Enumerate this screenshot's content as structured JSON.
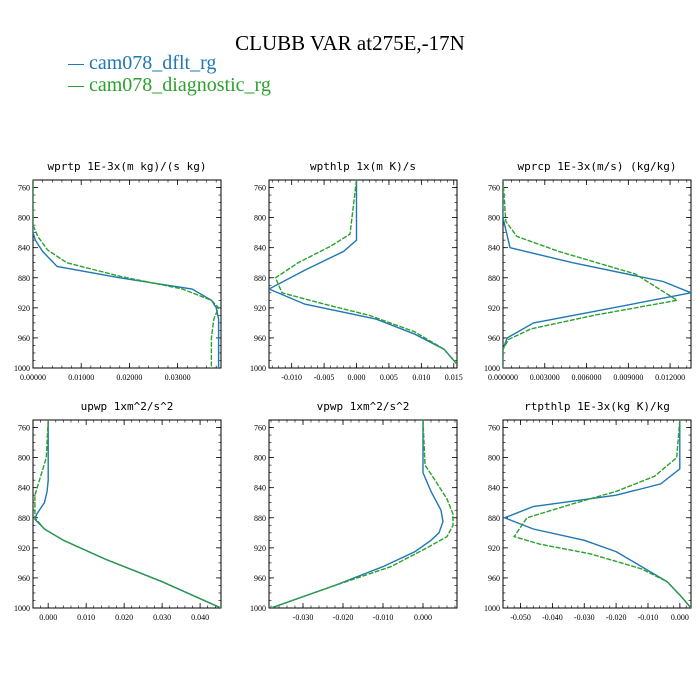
{
  "title": "CLUBB VAR at275E,-17N",
  "legend": [
    {
      "label": "cam078_dflt_rg",
      "color": "#1f77b4",
      "dash": "solid"
    },
    {
      "label": "cam078_diagnostic_rg",
      "color": "#2ca02c",
      "dash": "dashed"
    }
  ],
  "chart_data": [
    {
      "type": "line",
      "title": "wprtp  1E-3x(m kg)/(s kg)",
      "xlim": [
        0,
        0.039
      ],
      "ylim": [
        1000,
        750
      ],
      "xticks": [
        0,
        0.01,
        0.02,
        0.03
      ],
      "xtick_labels": [
        "0.00000",
        "0.01000",
        "0.02000",
        "0.03000"
      ],
      "yticks": [
        760,
        800,
        840,
        880,
        920,
        960,
        1000
      ],
      "series": [
        {
          "name": "cam078_dflt_rg",
          "x": [
            0,
            0,
            0.0005,
            0.002,
            0.005,
            0.018,
            0.033,
            0.037,
            0.038,
            0.0385,
            0.0385,
            0.0385
          ],
          "y": [
            750,
            820,
            830,
            845,
            865,
            880,
            895,
            910,
            920,
            935,
            960,
            1000
          ]
        },
        {
          "name": "cam078_diagnostic_rg",
          "x": [
            0,
            0,
            0.001,
            0.003,
            0.007,
            0.018,
            0.031,
            0.037,
            0.0385,
            0.0375,
            0.037,
            0.037
          ],
          "y": [
            750,
            810,
            825,
            843,
            860,
            878,
            895,
            910,
            920,
            935,
            960,
            1000
          ]
        }
      ]
    },
    {
      "type": "line",
      "title": "wpthlp  1x(m K)/s",
      "xlim": [
        -0.0135,
        0.0155
      ],
      "ylim": [
        1000,
        750
      ],
      "xticks": [
        -0.01,
        -0.005,
        0,
        0.005,
        0.01,
        0.015
      ],
      "xtick_labels": [
        "-0.010",
        "-0.005",
        "0.000",
        "0.005",
        "0.010",
        "0.015"
      ],
      "yticks": [
        760,
        800,
        840,
        880,
        920,
        960,
        1000
      ],
      "series": [
        {
          "name": "cam078_dflt_rg",
          "x": [
            0,
            0,
            -0.002,
            -0.008,
            -0.0135,
            -0.008,
            0.003,
            0.009,
            0.0135,
            0.0155
          ],
          "y": [
            750,
            830,
            845,
            870,
            895,
            915,
            935,
            955,
            975,
            995
          ]
        },
        {
          "name": "cam078_diagnostic_rg",
          "x": [
            0,
            -0.001,
            -0.004,
            -0.009,
            -0.0125,
            -0.0115,
            -0.005,
            0.002,
            0.009,
            0.0135,
            0.0155
          ],
          "y": [
            750,
            822,
            838,
            860,
            880,
            900,
            915,
            930,
            952,
            975,
            995
          ]
        }
      ]
    },
    {
      "type": "line",
      "title": "wprcp  1E-3x(m/s) (kg/kg)",
      "xlim": [
        0,
        0.0135
      ],
      "ylim": [
        1000,
        750
      ],
      "xticks": [
        0,
        0.003,
        0.006,
        0.009,
        0.012
      ],
      "xtick_labels": [
        "0.000000",
        "0.003000",
        "0.006000",
        "0.009000",
        "0.012000"
      ],
      "yticks": [
        760,
        800,
        840,
        880,
        920,
        960,
        1000
      ],
      "series": [
        {
          "name": "cam078_dflt_rg",
          "x": [
            0,
            0,
            0.0005,
            0.005,
            0.0115,
            0.0135,
            0.0065,
            0.0022,
            0.0003,
            0,
            0
          ],
          "y": [
            750,
            800,
            840,
            860,
            885,
            900,
            925,
            940,
            960,
            975,
            1000
          ]
        },
        {
          "name": "cam078_diagnostic_rg",
          "x": [
            0,
            0.0002,
            0.001,
            0.004,
            0.0095,
            0.0125,
            0.0065,
            0.002,
            0.0004,
            0,
            0
          ],
          "y": [
            750,
            805,
            825,
            845,
            875,
            910,
            930,
            948,
            962,
            975,
            1000
          ]
        }
      ]
    },
    {
      "type": "line",
      "title": "upwp  1xm^2/s^2",
      "xlim": [
        -0.004,
        0.0455
      ],
      "ylim": [
        1000,
        750
      ],
      "xticks": [
        0,
        0.01,
        0.02,
        0.03,
        0.04
      ],
      "xtick_labels": [
        "0.000",
        "0.010",
        "0.020",
        "0.030",
        "0.040"
      ],
      "yticks": [
        760,
        800,
        840,
        880,
        920,
        960,
        1000
      ],
      "series": [
        {
          "name": "cam078_dflt_rg",
          "x": [
            0,
            0,
            -0.0003,
            -0.001,
            -0.003,
            -0.0035,
            -0.001,
            0.004,
            0.015,
            0.03,
            0.0455
          ],
          "y": [
            750,
            830,
            845,
            860,
            875,
            882,
            895,
            910,
            935,
            965,
            1000
          ]
        },
        {
          "name": "cam078_diagnostic_rg",
          "x": [
            0,
            -0.0005,
            -0.002,
            -0.0035,
            -0.0035,
            -0.001,
            0.004,
            0.015,
            0.03,
            0.0455
          ],
          "y": [
            750,
            800,
            825,
            850,
            880,
            895,
            910,
            935,
            965,
            1000
          ]
        }
      ]
    },
    {
      "type": "line",
      "title": "vpwp  1xm^2/s^2",
      "xlim": [
        -0.0385,
        0.0085
      ],
      "ylim": [
        1000,
        750
      ],
      "xticks": [
        -0.03,
        -0.02,
        -0.01,
        0
      ],
      "xtick_labels": [
        "-0.030",
        "-0.020",
        "-0.010",
        "0.000"
      ],
      "yticks": [
        760,
        800,
        840,
        880,
        920,
        960,
        1000
      ],
      "series": [
        {
          "name": "cam078_dflt_rg",
          "x": [
            0,
            0,
            0.002,
            0.0045,
            0.005,
            0.004,
            0.002,
            -0.002,
            -0.01,
            -0.022,
            -0.038
          ],
          "y": [
            750,
            820,
            845,
            870,
            885,
            900,
            910,
            925,
            945,
            970,
            1000
          ]
        },
        {
          "name": "cam078_diagnostic_rg",
          "x": [
            0,
            0.0005,
            0.003,
            0.006,
            0.0075,
            0.0075,
            0.006,
            0.001,
            -0.008,
            -0.022,
            -0.038
          ],
          "y": [
            750,
            810,
            830,
            855,
            875,
            890,
            905,
            920,
            945,
            970,
            1000
          ]
        }
      ]
    },
    {
      "type": "line",
      "title": "rtpthlp  1E-3x(kg K)/kg",
      "xlim": [
        -0.0555,
        0.0035
      ],
      "ylim": [
        1000,
        750
      ],
      "xticks": [
        -0.05,
        -0.04,
        -0.03,
        -0.02,
        -0.01,
        0
      ],
      "xtick_labels": [
        "-0.050",
        "-0.040",
        "-0.030",
        "-0.020",
        "-0.010",
        "0.000"
      ],
      "yticks": [
        760,
        800,
        840,
        880,
        920,
        960,
        1000
      ],
      "series": [
        {
          "name": "cam078_dflt_rg",
          "x": [
            0,
            0,
            -0.006,
            -0.02,
            -0.046,
            -0.055,
            -0.046,
            -0.03,
            -0.02,
            -0.012,
            -0.004,
            0.0005,
            0.0035
          ],
          "y": [
            750,
            815,
            835,
            850,
            865,
            880,
            895,
            910,
            925,
            945,
            965,
            985,
            1000
          ]
        },
        {
          "name": "cam078_diagnostic_rg",
          "x": [
            0,
            -0.001,
            -0.008,
            -0.02,
            -0.034,
            -0.048,
            -0.052,
            -0.044,
            -0.028,
            -0.012,
            -0.004,
            0.0005,
            0.0035
          ],
          "y": [
            750,
            800,
            825,
            845,
            862,
            880,
            905,
            915,
            928,
            948,
            965,
            985,
            1000
          ]
        }
      ]
    }
  ]
}
